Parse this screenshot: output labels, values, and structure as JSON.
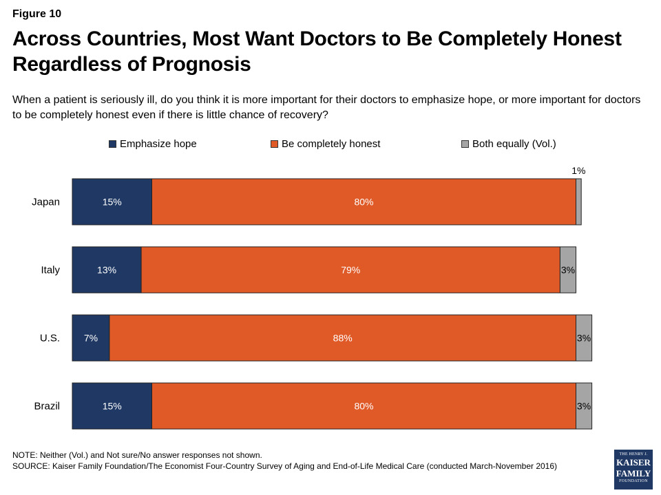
{
  "figure_label": "Figure 10",
  "title": "Across Countries, Most Want Doctors to Be Completely Honest Regardless of Prognosis",
  "subtitle": "When a patient is seriously ill, do you think it is more important for their doctors to emphasize hope, or more important for doctors to be completely honest even if there is little chance of recovery?",
  "note": "NOTE: Neither (Vol.) and Not sure/No answer responses not shown.",
  "source": "SOURCE: Kaiser Family Foundation/The Economist Four-Country Survey of Aging and End-of-Life Medical Care (conducted March-November 2016)",
  "logo": {
    "line1": "THE HENRY J.",
    "line2": "KAISER",
    "line3": "FAMILY",
    "line4": "FOUNDATION",
    "color": "#1f3864"
  },
  "chart_data": {
    "type": "bar",
    "orientation": "horizontal",
    "stacked": true,
    "categories": [
      "Japan",
      "Italy",
      "U.S.",
      "Brazil"
    ],
    "series": [
      {
        "name": "Emphasize hope",
        "color": "#1f3864",
        "values": [
          15,
          13,
          7,
          15
        ],
        "labels": [
          "15%",
          "13%",
          "7%",
          "15%"
        ]
      },
      {
        "name": "Be completely honest",
        "color": "#e05a28",
        "values": [
          80,
          79,
          88,
          80
        ],
        "labels": [
          "80%",
          "79%",
          "88%",
          "80%"
        ]
      },
      {
        "name": "Both equally (Vol.)",
        "color": "#a5a5a5",
        "values": [
          1,
          3,
          3,
          3
        ],
        "labels": [
          "1%",
          "3%",
          "3%",
          "3%"
        ]
      }
    ],
    "legend_position": "top",
    "grid": false,
    "xlim": [
      0,
      100
    ]
  }
}
